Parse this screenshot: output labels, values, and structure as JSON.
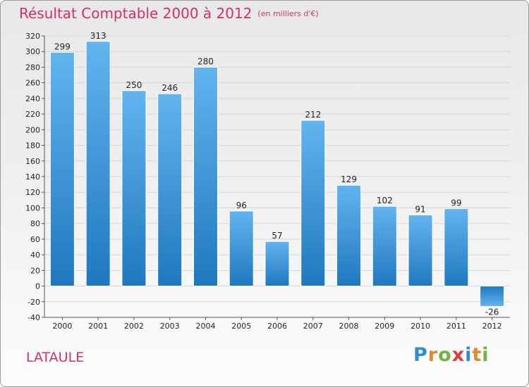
{
  "header": {
    "title": "Résultat Comptable 2000 à 2012",
    "subtitle": "(en milliers d'€)"
  },
  "footer": {
    "commune": "LATAULE",
    "logo_letters": [
      "P",
      "r",
      "o",
      "x",
      "i",
      "t",
      "i"
    ],
    "logo_colors": [
      "#2e8bd6",
      "#e8842a",
      "#6fb43f",
      "#e03a3e",
      "#2e8bd6",
      "#e8842a",
      "#6fb43f"
    ]
  },
  "colors": {
    "bar_light": "#62b4ee",
    "bar_dark": "#1f78bf",
    "grid": "#d6d6d6",
    "title": "#d0306b"
  },
  "chart_data": {
    "type": "bar",
    "title": "Résultat Comptable 2000 à 2012",
    "subtitle": "(en milliers d'€)",
    "xlabel": "",
    "ylabel": "",
    "categories": [
      "2000",
      "2001",
      "2002",
      "2003",
      "2004",
      "2005",
      "2006",
      "2007",
      "2008",
      "2009",
      "2010",
      "2011",
      "2012"
    ],
    "values": [
      299,
      313,
      250,
      246,
      280,
      96,
      57,
      212,
      129,
      102,
      91,
      99,
      -26
    ],
    "ylim": [
      -40,
      320
    ],
    "yticks": [
      -40,
      -20,
      0,
      20,
      40,
      60,
      80,
      100,
      120,
      140,
      160,
      180,
      200,
      220,
      240,
      260,
      280,
      300,
      320
    ],
    "grid": true,
    "legend": "none"
  }
}
